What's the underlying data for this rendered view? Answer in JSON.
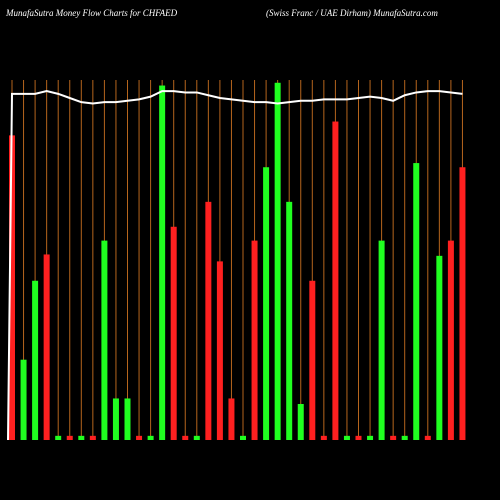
{
  "chart_data": {
    "type": "bar",
    "title": "MunafaSutra  Money Flow  Charts for CHFAED",
    "subtitle": "(Swiss Franc / UAE Dirham) MunafaSutra.com",
    "ylim": [
      0,
      260
    ],
    "grid_color": "#b5651d",
    "line_color": "#ffffff",
    "values": [
      220,
      58,
      115,
      134,
      3,
      3,
      3,
      3,
      144,
      30,
      30,
      3,
      3,
      256,
      154,
      3,
      3,
      172,
      129,
      30,
      3,
      144,
      197,
      258,
      172,
      26,
      115,
      3,
      230,
      3,
      3,
      3,
      144,
      3,
      3,
      200,
      3,
      133,
      144,
      197
    ],
    "colors": [
      "#ff2020",
      "#20ff20",
      "#20ff20",
      "#ff2020",
      "#20ff20",
      "#ff2020",
      "#20ff20",
      "#ff2020",
      "#20ff20",
      "#20ff20",
      "#20ff20",
      "#ff2020",
      "#20ff20",
      "#20ff20",
      "#ff2020",
      "#ff2020",
      "#20ff20",
      "#ff2020",
      "#ff2020",
      "#ff2020",
      "#20ff20",
      "#ff2020",
      "#20ff20",
      "#20ff20",
      "#20ff20",
      "#20ff20",
      "#ff2020",
      "#ff2020",
      "#ff2020",
      "#20ff20",
      "#ff2020",
      "#20ff20",
      "#20ff20",
      "#ff2020",
      "#20ff20",
      "#20ff20",
      "#ff2020",
      "#20ff20",
      "#ff2020",
      "#ff2020"
    ],
    "line_values": [
      250,
      250,
      250,
      252,
      250,
      247,
      244,
      243,
      244,
      244,
      245,
      246,
      248,
      252,
      252,
      251,
      251,
      249,
      247,
      246,
      245,
      244,
      244,
      243,
      244,
      245,
      245,
      246,
      246,
      246,
      247,
      248,
      247,
      245,
      249,
      251,
      252,
      252,
      251,
      250
    ]
  }
}
